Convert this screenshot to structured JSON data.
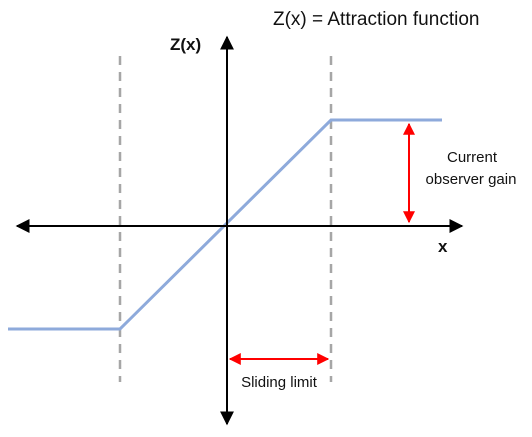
{
  "title": "Z(x) = Attraction function",
  "axes": {
    "y_label": "Z(x)",
    "x_label": "x"
  },
  "annotations": {
    "gain_line1": "Current",
    "gain_line2": "observer gain",
    "sliding_limit": "Sliding limit"
  },
  "colors": {
    "curve": "#8eaadb",
    "axes": "#000000",
    "limits": "#a6a6a6",
    "arrows": "#ff0000"
  }
}
